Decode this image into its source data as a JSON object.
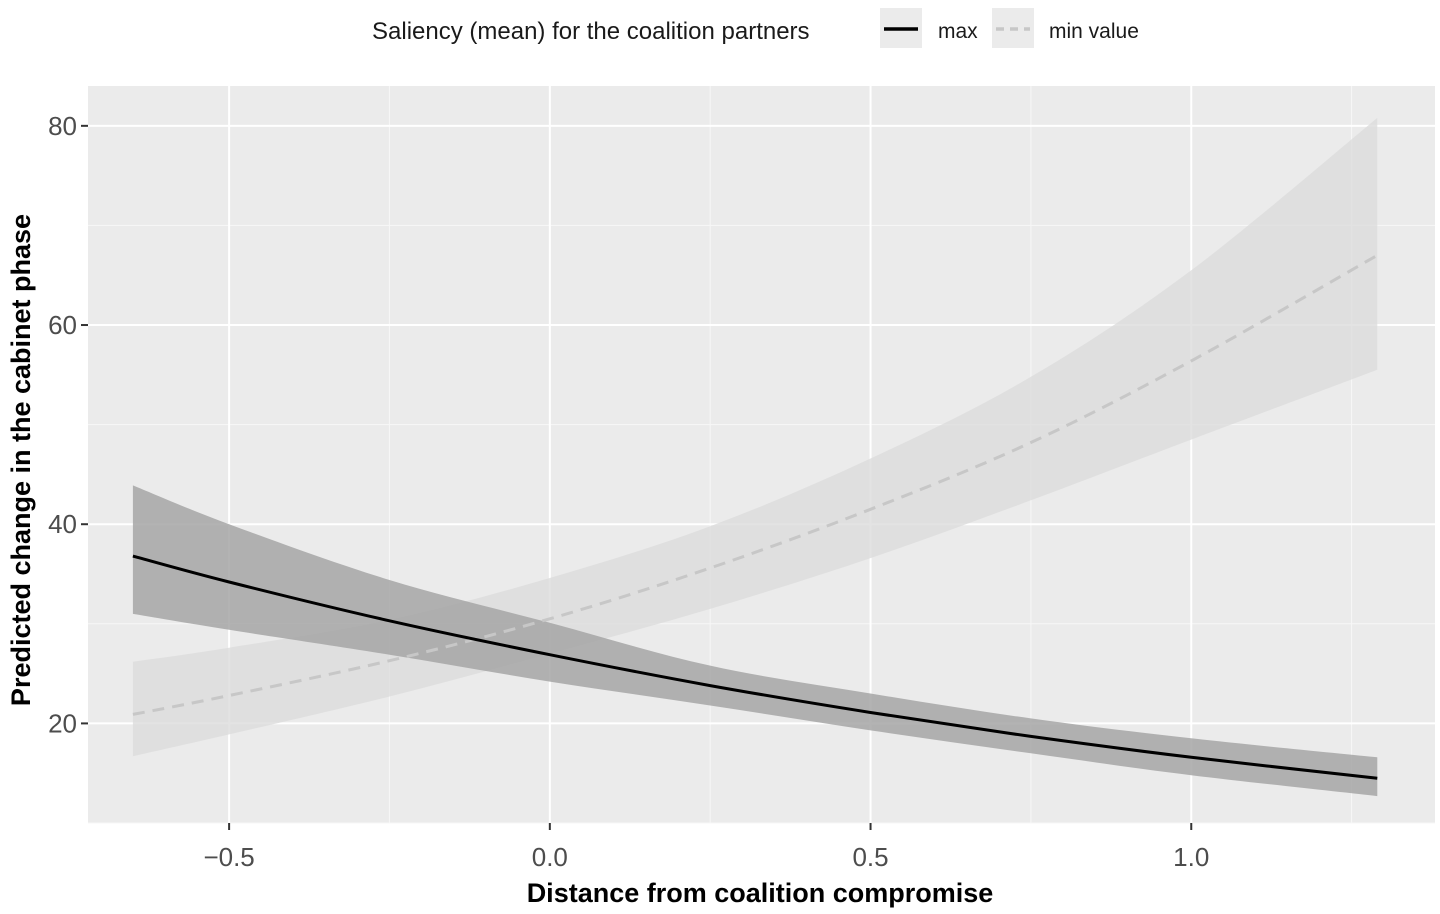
{
  "chart_data": {
    "type": "line",
    "title": "",
    "xlabel": "Distance from coalition compromise",
    "ylabel": "Predicted change in the cabinet phase",
    "xlim": [
      -0.72,
      1.38
    ],
    "ylim": [
      10,
      84
    ],
    "x_ticks": [
      -0.5,
      0.0,
      0.5,
      1.0
    ],
    "x_tick_labels": [
      "−0.5",
      "0.0",
      "0.5",
      "1.0"
    ],
    "y_ticks": [
      20,
      40,
      60,
      80
    ],
    "y_tick_labels": [
      "20",
      "40",
      "60",
      "80"
    ],
    "grid": true,
    "legend": {
      "position": "top",
      "title": "Saliency (mean) for the coalition partners",
      "entries": [
        "max",
        "min value"
      ]
    },
    "series": [
      {
        "name": "max",
        "color": "#000000",
        "style": "solid",
        "ribbon_color": "#a6a6a6",
        "x": [
          -0.65,
          -0.5,
          -0.25,
          0.0,
          0.25,
          0.5,
          0.75,
          1.0,
          1.29
        ],
        "y": [
          36.8,
          34.2,
          30.3,
          26.9,
          23.8,
          21.1,
          18.7,
          16.6,
          14.5
        ],
        "lower": [
          31.0,
          29.4,
          26.9,
          24.2,
          21.8,
          19.3,
          17.0,
          14.8,
          12.7
        ],
        "upper": [
          43.9,
          40.0,
          34.4,
          30.1,
          25.8,
          23.0,
          20.5,
          18.5,
          16.6
        ]
      },
      {
        "name": "min value",
        "color": "#c7c7c7",
        "style": "dashed",
        "ribbon_color": "#dcdcdc",
        "x": [
          -0.65,
          -0.5,
          -0.25,
          0.0,
          0.25,
          0.5,
          0.75,
          1.0,
          1.29
        ],
        "y": [
          20.9,
          22.8,
          26.3,
          30.5,
          35.6,
          41.5,
          48.2,
          56.4,
          67.0
        ],
        "lower": [
          16.7,
          18.9,
          22.7,
          27.0,
          31.5,
          36.6,
          42.4,
          48.5,
          55.5
        ],
        "upper": [
          26.2,
          27.6,
          30.4,
          34.6,
          39.8,
          46.6,
          54.8,
          65.5,
          80.8
        ]
      }
    ]
  }
}
